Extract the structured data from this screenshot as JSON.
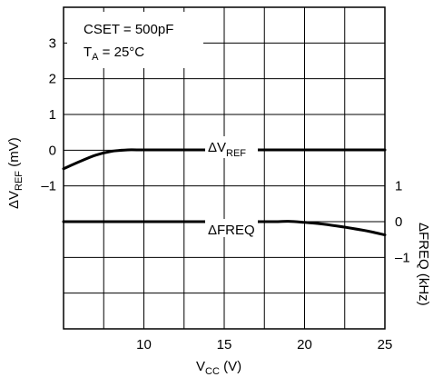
{
  "chart_data": {
    "type": "line",
    "x_axis": {
      "label_main": "V",
      "label_sub": "CC",
      "label_unit": " (V)",
      "range": [
        5,
        25
      ],
      "ticks": [
        10,
        15,
        20,
        25
      ],
      "grid_step": 2.5
    },
    "y_left_axis": {
      "label_main": "ΔV",
      "label_sub": "REF",
      "label_unit": " (mV)",
      "range": [
        -5,
        4
      ],
      "ticks": [
        3,
        2,
        1,
        0,
        -1
      ],
      "tick_labels": [
        "3",
        "2",
        "1",
        "0",
        "–1"
      ]
    },
    "y_right_axis": {
      "label": "ΔFREQ (kHz)",
      "ticks": [
        1,
        0,
        -1
      ],
      "tick_labels": [
        "1",
        "0",
        "–1"
      ],
      "offset_on_left_scale": -2,
      "note": "right scale: 1 kHz per left-axis division; 0 kHz aligns with –2 mV"
    },
    "annotation": {
      "line1": "CSET = 500pF",
      "line2_main": "T",
      "line2_sub": "A",
      "line2_rest": " = 25°C"
    },
    "series": [
      {
        "name": "ΔVREF",
        "label_main": "ΔV",
        "label_sub": "REF",
        "axis": "left",
        "points": [
          [
            5,
            -0.52
          ],
          [
            6,
            -0.32
          ],
          [
            7,
            -0.14
          ],
          [
            8,
            -0.03
          ],
          [
            9,
            0.01
          ],
          [
            10,
            0.01
          ],
          [
            15,
            0.01
          ],
          [
            20,
            0.01
          ],
          [
            25,
            0.01
          ]
        ]
      },
      {
        "name": "ΔFREQ",
        "label_main": "ΔFREQ",
        "label_sub": "",
        "axis": "right",
        "points": [
          [
            5,
            0
          ],
          [
            10,
            0
          ],
          [
            15,
            0
          ],
          [
            18,
            0
          ],
          [
            19,
            0.01
          ],
          [
            20,
            -0.02
          ],
          [
            21,
            -0.06
          ],
          [
            22,
            -0.12
          ],
          [
            23,
            -0.19
          ],
          [
            24,
            -0.27
          ],
          [
            25,
            -0.37
          ]
        ]
      }
    ],
    "grid": true,
    "colors": {
      "line": "#000000",
      "grid": "#000000"
    }
  }
}
